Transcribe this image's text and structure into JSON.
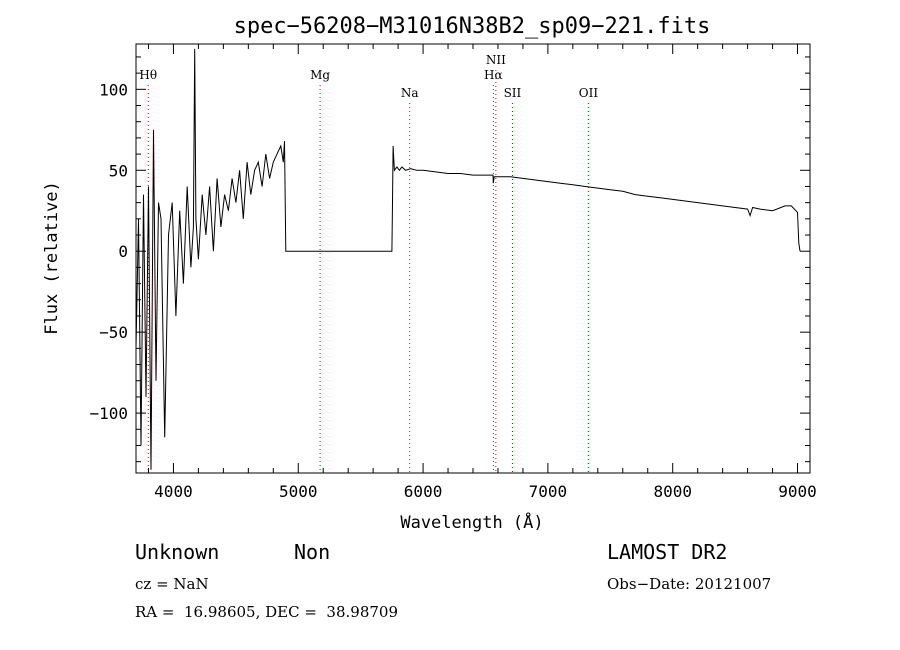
{
  "chart_data": {
    "type": "line",
    "title": "spec−56208−M31016N38B2_sp09−221.fits",
    "xlabel": "Wavelength (Å)",
    "ylabel": "Flux (relative)",
    "xlim": [
      3700,
      9100
    ],
    "ylim": [
      -137,
      128
    ],
    "x_ticks": [
      4000,
      5000,
      6000,
      7000,
      8000,
      9000
    ],
    "y_ticks": [
      100,
      50,
      0,
      -50,
      -100
    ],
    "y_tick_labels": [
      "100",
      "50",
      "0",
      "−50",
      "−100"
    ],
    "grid": false,
    "series": [
      {
        "color": "#000000",
        "x": [
          3700,
          3720,
          3740,
          3760,
          3780,
          3800,
          3820,
          3840,
          3860,
          3880,
          3900,
          3930,
          3960,
          3990,
          4020,
          4050,
          4080,
          4110,
          4140,
          4160,
          4170,
          4180,
          4200,
          4230,
          4260,
          4290,
          4320,
          4350,
          4380,
          4410,
          4440,
          4470,
          4500,
          4530,
          4560,
          4590,
          4620,
          4650,
          4680,
          4710,
          4740,
          4770,
          4800,
          4830,
          4860,
          4880,
          4890,
          4900,
          5000,
          5200,
          5400,
          5600,
          5750,
          5755,
          5760,
          5770,
          5790,
          5810,
          5830,
          5860,
          5900,
          5950,
          6000,
          6100,
          6200,
          6300,
          6400,
          6500,
          6560,
          6563,
          6570,
          6600,
          6700,
          6800,
          6900,
          7000,
          7100,
          7200,
          7300,
          7400,
          7500,
          7600,
          7700,
          7800,
          7900,
          8000,
          8100,
          8200,
          8300,
          8400,
          8500,
          8600,
          8620,
          8640,
          8700,
          8800,
          8900,
          8950,
          9000,
          9010,
          9020
        ],
        "y": [
          -60,
          20,
          -120,
          35,
          -90,
          40,
          -135,
          75,
          -80,
          30,
          20,
          -115,
          10,
          30,
          -40,
          25,
          -20,
          40,
          -10,
          15,
          125,
          20,
          -5,
          35,
          10,
          40,
          0,
          45,
          15,
          35,
          25,
          45,
          30,
          50,
          20,
          55,
          35,
          50,
          55,
          40,
          60,
          45,
          55,
          60,
          65,
          55,
          68,
          0,
          0,
          0,
          0,
          0,
          0,
          30,
          65,
          50,
          52,
          50,
          52,
          50,
          51,
          50,
          50,
          49,
          48,
          48,
          47,
          47,
          47,
          42,
          46,
          46,
          46,
          45,
          44,
          43,
          42,
          41,
          40,
          39,
          38,
          37,
          35,
          34,
          33,
          32,
          31,
          30,
          29,
          28,
          27,
          26,
          22,
          27,
          26,
          25,
          28,
          28,
          24,
          5,
          0
        ]
      }
    ],
    "lines": [
      {
        "label": "Hθ",
        "x": 3798,
        "label_row": 1
      },
      {
        "label": "Mg",
        "x": 5175,
        "label_row": 1
      },
      {
        "label": "Na",
        "x": 5893,
        "label_row": 3
      },
      {
        "label": "NII",
        "x": 6583,
        "label_row": 0
      },
      {
        "label": "Hα",
        "x": 6563,
        "label_row": 2
      },
      {
        "label": "SII",
        "x": 6716,
        "label_row": 3
      },
      {
        "label": "OII",
        "x": 7325,
        "label_row": 3
      }
    ],
    "line_color": "#dd0000"
  },
  "info": {
    "class": "Unknown",
    "subclass": "Non",
    "redshift": "cz = NaN",
    "coords": "RA =  16.98605, DEC =  38.98709",
    "survey": "LAMOST DR2",
    "obs_date": "Obs−Date: 20121007"
  }
}
